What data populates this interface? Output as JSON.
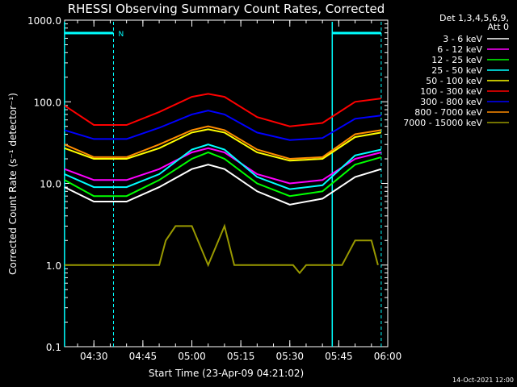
{
  "chart_data": {
    "type": "line",
    "title": "RHESSI Observing Summary Count Rates, Corrected",
    "xlabel": "Start Time (23-Apr-09 04:21:02)",
    "ylabel": "Corrected Count Rate (s⁻¹ detector⁻¹)",
    "y_scale": "log",
    "ylim": [
      0.1,
      1000
    ],
    "xlim": [
      "04:21:02",
      "06:00:00"
    ],
    "x_ticks": [
      "04:30",
      "04:45",
      "05:00",
      "05:15",
      "05:30",
      "05:45",
      "06:00"
    ],
    "y_ticks": [
      "1000.0",
      "100.0",
      "10.0",
      "1.0",
      "0.1"
    ],
    "legend_header": [
      "Det 1,3,4,5,6,9,",
      "Att 0"
    ],
    "legend_position": "right",
    "series": [
      {
        "name": "3 - 6 keV",
        "color": "#ffffff",
        "x": [
          "04:21",
          "04:30",
          "04:40",
          "04:50",
          "05:00",
          "05:05",
          "05:10",
          "05:20",
          "05:30",
          "05:40",
          "05:50",
          "05:58"
        ],
        "y": [
          9,
          6,
          6,
          9,
          15,
          17,
          15,
          8,
          5.5,
          6.5,
          12,
          15
        ]
      },
      {
        "name": "6 - 12 keV",
        "color": "#ff00ff",
        "x": [
          "04:21",
          "04:30",
          "04:40",
          "04:50",
          "05:00",
          "05:05",
          "05:10",
          "05:20",
          "05:30",
          "05:40",
          "05:50",
          "05:58"
        ],
        "y": [
          15,
          11,
          11,
          15,
          24,
          27,
          24,
          13,
          10,
          11,
          20,
          24
        ]
      },
      {
        "name": "12 - 25 keV",
        "color": "#00ff00",
        "x": [
          "04:21",
          "04:30",
          "04:40",
          "04:50",
          "05:00",
          "05:05",
          "05:10",
          "05:20",
          "05:30",
          "05:40",
          "05:50",
          "05:58"
        ],
        "y": [
          11,
          7,
          7,
          11,
          20,
          24,
          20,
          10,
          7,
          8,
          17,
          21
        ]
      },
      {
        "name": "25 - 50 keV",
        "color": "#00ffff",
        "x": [
          "04:21",
          "04:30",
          "04:40",
          "04:50",
          "05:00",
          "05:05",
          "05:10",
          "05:20",
          "05:30",
          "05:40",
          "05:50",
          "05:58"
        ],
        "y": [
          13,
          9,
          9,
          13,
          26,
          30,
          26,
          12,
          8.5,
          9.5,
          22,
          26
        ]
      },
      {
        "name": "50 - 100 keV",
        "color": "#ffff00",
        "x": [
          "04:21",
          "04:30",
          "04:40",
          "04:50",
          "05:00",
          "05:05",
          "05:10",
          "05:20",
          "05:30",
          "05:40",
          "05:50",
          "05:58"
        ],
        "y": [
          27,
          20,
          20,
          27,
          42,
          46,
          42,
          24,
          19,
          20,
          37,
          42
        ]
      },
      {
        "name": "100 - 300 keV",
        "color": "#ff0000",
        "x": [
          "04:21",
          "04:30",
          "04:40",
          "04:50",
          "05:00",
          "05:05",
          "05:10",
          "05:20",
          "05:30",
          "05:40",
          "05:50",
          "05:58"
        ],
        "y": [
          90,
          52,
          52,
          75,
          115,
          125,
          115,
          65,
          50,
          55,
          100,
          110
        ]
      },
      {
        "name": "300 - 800 keV",
        "color": "#0000ff",
        "x": [
          "04:21",
          "04:30",
          "04:40",
          "04:50",
          "05:00",
          "05:05",
          "05:10",
          "05:20",
          "05:30",
          "05:40",
          "05:50",
          "05:58"
        ],
        "y": [
          45,
          35,
          35,
          48,
          70,
          78,
          70,
          42,
          34,
          36,
          62,
          68
        ]
      },
      {
        "name": "800 - 7000 keV",
        "color": "#ff8c00",
        "x": [
          "04:21",
          "04:30",
          "04:40",
          "04:50",
          "05:00",
          "05:05",
          "05:10",
          "05:20",
          "05:30",
          "05:40",
          "05:50",
          "05:58"
        ],
        "y": [
          30,
          21,
          21,
          30,
          45,
          50,
          45,
          26,
          20,
          21,
          40,
          45
        ]
      },
      {
        "name": "7000 - 15000 keV",
        "color": "#999900",
        "x": [
          "04:21",
          "04:40",
          "04:41",
          "04:45",
          "04:50",
          "04:52",
          "04:55",
          "05:00",
          "05:05",
          "05:10",
          "05:13",
          "05:18",
          "05:25",
          "05:31",
          "05:33",
          "05:35",
          "05:42",
          "05:46",
          "05:50",
          "05:55",
          "05:57"
        ],
        "y": [
          1,
          1,
          1,
          1,
          1,
          2,
          3,
          3,
          1,
          3,
          1,
          1,
          1,
          1,
          0.8,
          1,
          1,
          1,
          2,
          2,
          1
        ]
      }
    ],
    "annotations": [
      {
        "text": "N",
        "color": "#00ffff",
        "x": "04:36"
      }
    ]
  },
  "footer": {
    "timestamp": "14-Oct-2021 12:00"
  }
}
